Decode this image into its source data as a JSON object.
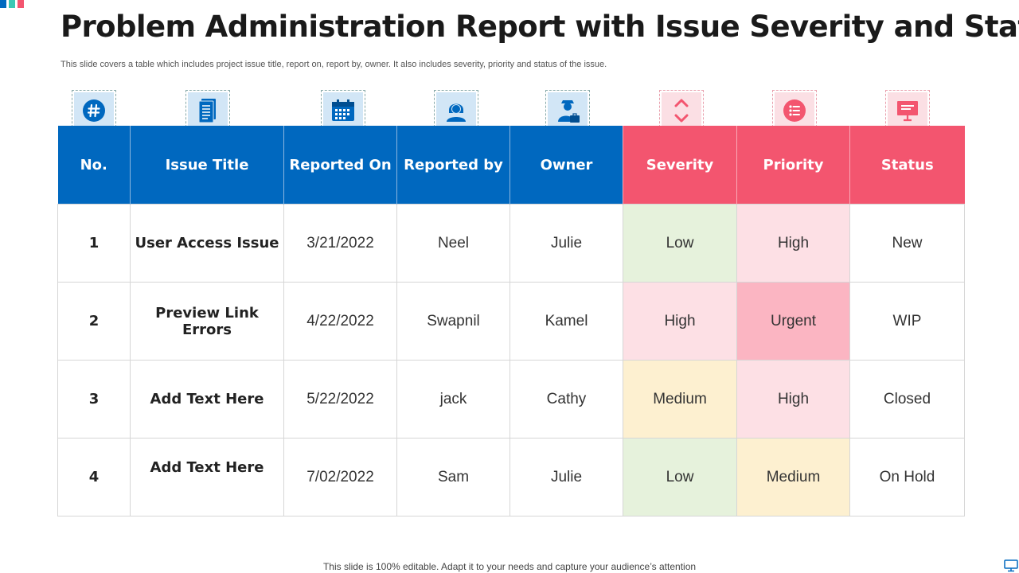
{
  "brand_colors": {
    "blue": "#0068bf",
    "pink": "#f3556f",
    "teal": "#3cc8b4"
  },
  "title": "Problem Administration Report with Issue Severity and Status",
  "subtitle": "This slide covers a table which includes project issue title, report on, report by,  owner. It also includes severity, priority and status of the issue.",
  "columns": [
    {
      "label": "No.",
      "icon": "hashtag-icon"
    },
    {
      "label": "Issue Title",
      "icon": "document-icon"
    },
    {
      "label": "Reported On",
      "icon": "calendar-icon"
    },
    {
      "label": "Reported by",
      "icon": "person-icon"
    },
    {
      "label": "Owner",
      "icon": "businessperson-icon"
    },
    {
      "label": "Severity",
      "icon": "up-down-chevron-icon"
    },
    {
      "label": "Priority",
      "icon": "list-circle-icon"
    },
    {
      "label": "Status",
      "icon": "presentation-board-icon"
    }
  ],
  "rows": [
    {
      "no": "1",
      "issue": "User Access Issue",
      "reported_on": "3/21/2022",
      "reported_by": "Neel",
      "owner": "Julie",
      "severity": "Low",
      "priority": "High",
      "status": "New"
    },
    {
      "no": "2",
      "issue": "Preview Link Errors",
      "reported_on": "4/22/2022",
      "reported_by": "Swapnil",
      "owner": "Kamel",
      "severity": "High",
      "priority": "Urgent",
      "status": "WIP"
    },
    {
      "no": "3",
      "issue": "Add Text Here",
      "reported_on": "5/22/2022",
      "reported_by": "jack",
      "owner": "Cathy",
      "severity": "Medium",
      "priority": "High",
      "status": "Closed"
    },
    {
      "no": "4",
      "issue": "Add Text Here",
      "reported_on": "7/02/2022",
      "reported_by": "Sam",
      "owner": "Julie",
      "severity": "Low",
      "priority": "Medium",
      "status": "On Hold"
    }
  ],
  "level_colors": {
    "Low": "#e6f2dc",
    "High": "#fde0e5",
    "Urgent": "#fbb5c2",
    "Medium": "#fdf0d0"
  },
  "footer": "This slide is 100% editable. Adapt it to your needs and capture your audience’s attention"
}
